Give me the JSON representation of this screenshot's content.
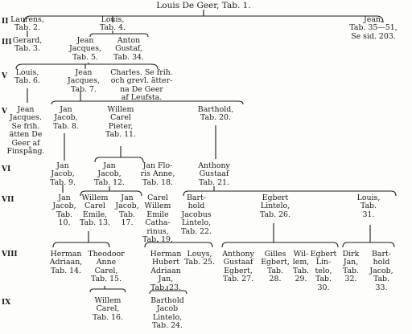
{
  "title": "Louis De Geer, Tab. 1.",
  "generations": [
    "II",
    "III",
    "V",
    "V",
    "VI",
    "VII",
    "VIII",
    "IX"
  ],
  "nodes": {
    "laurens": "Laurens,\nTab. 2.",
    "louis_ii": "Louis,\nTab. 4.",
    "jean_ii": "Jean,\nTab. 35—51,\nSe sid. 203.",
    "gerard": "Gerard,\nTab. 3.",
    "jean_jacques_iii": "Jean\nJacques,\nTab. 5.",
    "anton_gustaf": "Anton\nGustaf,\nTab. 34.",
    "louis_v": "Louis,\nTab. 6.",
    "jean_jacques_v": "Jean\nJacques,\nTab. 7.",
    "charles": "Charles.  Se frih.\noch grevl. ätter-\nna De Geer\naf Leufsta.",
    "jean_jacques_finspang": "Jean\nJacques.\nSe frih.\nätten De\nGeer af\nFinspång.",
    "jan_jacob_8": "Jan\nJacob,\nTab. 8.",
    "willem_carel_pieter": "Willem\nCarel\nPieter,\nTab. 11.",
    "barthold_20": "Barthold,\nTab. 20.",
    "jan_jacob_9": "Jan\nJacob,\nTab. 9.",
    "jan_jacob_12": "Jan\nJacob,\nTab. 12.",
    "jan_floris_anne": "Jan Flo-\nris Anne,\nTab. 18.",
    "anthony_gustaaf_21": "Anthony\nGustaaf\nTab. 21.",
    "jan_jacob_10": "Jan\nJacob,\nTab.\n10.",
    "willem_carel_emile": "Willem\nCarel\nEmile,\nTab. 13.",
    "jan_17": "Jan\nJacob,\nTab.\n17.",
    "carel_willem": "Carel\nWillem\nEmile\nCatha-\nrinus,\nTab. 19.",
    "barthold_jacobus": "Bart-\nhold\nJacobus\nLintelo,\nTab. 22.",
    "egbert_lintelo_26": "Egbert\nLintelo,\nTab. 26.",
    "louis_31": "Louis,\nTab.\n31.",
    "herman_adriaan": "Herman\nAdriaan,\nTab. 14.",
    "theodoor": "Theodoor\nAnne\nCarel,\nTab. 15.",
    "herman_hubert": "Herman\nHubert\nAdriaan\nJan,\nTab. 23.",
    "louys_25": "Louys,\nTab. 25.",
    "anthony_gustaaf_egbert": "Anthony\nGustaaf\nEgbert,\nTab. 27.",
    "gilles_egbert": "Gilles\nEgbert,\nTab.\n28.",
    "willem_29": "Wil-\nlem,\nTab.\n29.",
    "egbert_30": "Egbert\nLin-\ntelo,\nTab.\n30.",
    "dirk_jan": "Dirk\nJan,\nTab.\n32.",
    "barthold_jacob": "Bart-\nhold\nJacob,\nTab.\n33.",
    "willem_carel_16": "Willem\nCarel,\nTab. 16.",
    "barthold_jacob_lintelo": "Barthold\nJacob\nLintelo,\nTab. 24."
  }
}
